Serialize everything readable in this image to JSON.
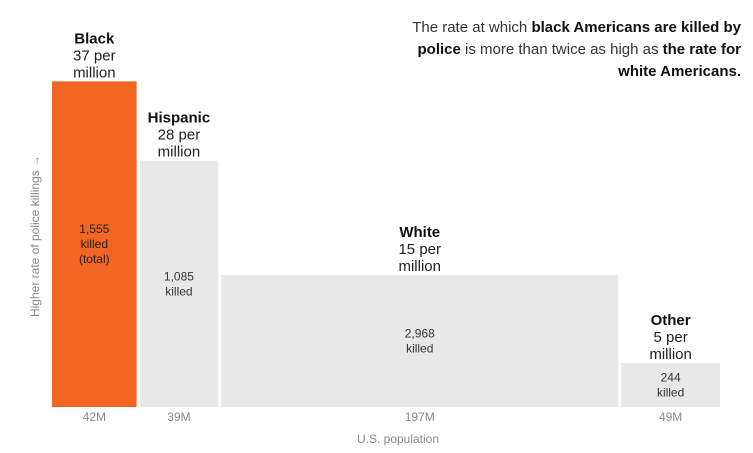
{
  "headline": {
    "part1": "The rate at which ",
    "bold1": "black Americans are killed by police",
    "part2": " is more than twice as high as ",
    "bold2": "the rate for white Americans."
  },
  "chart_data": {
    "type": "bar",
    "variable_width": true,
    "ylabel": "Higher rate of police killings →",
    "xlabel": "U.S. population",
    "rate_unit": "per million",
    "categories": [
      "Black",
      "Hispanic",
      "White",
      "Other"
    ],
    "rate_labels": [
      "37 per",
      "28 per",
      "15 per",
      "5 per"
    ],
    "rate_unit_labels": [
      "million",
      "million",
      "million",
      "million"
    ],
    "rates_per_million": [
      37,
      28,
      15,
      5
    ],
    "population_millions": [
      42,
      39,
      197,
      49
    ],
    "population_labels": [
      "42M",
      "39M",
      "197M",
      "49M"
    ],
    "killed_count": [
      "1,555",
      "1,085",
      "2,968",
      "244"
    ],
    "killed_label": [
      "killed",
      "killed",
      "killed",
      "killed"
    ],
    "killed_extra": [
      "(total)",
      "",
      "",
      ""
    ],
    "colors": [
      "#f26522",
      "#e8e8e8",
      "#e8e8e8",
      "#e8e8e8"
    ],
    "grid": false,
    "legend": "none"
  }
}
